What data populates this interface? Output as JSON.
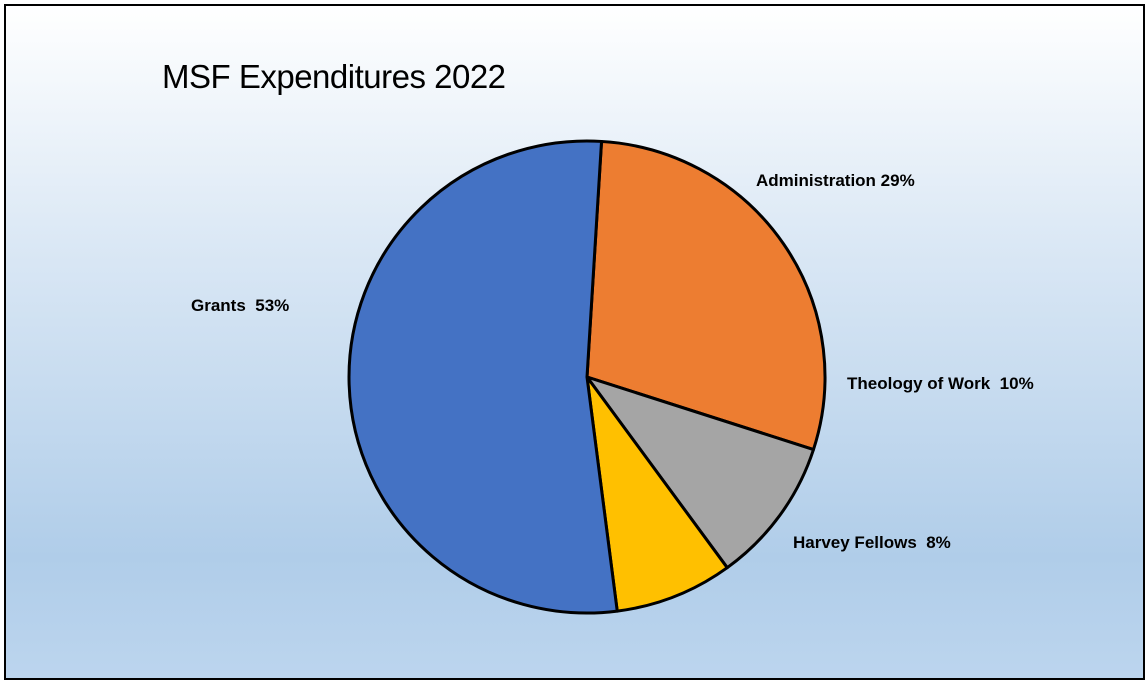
{
  "chart_data": {
    "type": "pie",
    "title": "MSF Expenditures 2022",
    "slices": [
      {
        "label": "Administration",
        "value": 29,
        "value_label": "29%",
        "display": "Administration 29%",
        "color": "#ED7D31"
      },
      {
        "label": "Theology of Work",
        "value": 10,
        "value_label": "10%",
        "display": "Theology of Work  10%",
        "color": "#A5A5A5"
      },
      {
        "label": "Harvey Fellows",
        "value": 8,
        "value_label": "8%",
        "display": "Harvey Fellows  8%",
        "color": "#FFC000"
      },
      {
        "label": "Grants",
        "value": 53,
        "value_label": "53%",
        "display": "Grants  53%",
        "color": "#4472C4"
      }
    ],
    "legend": "none",
    "grid": false
  },
  "colors": {
    "border": "#000000",
    "background_top": "#ffffff",
    "background_bottom": "#b0cde9"
  }
}
